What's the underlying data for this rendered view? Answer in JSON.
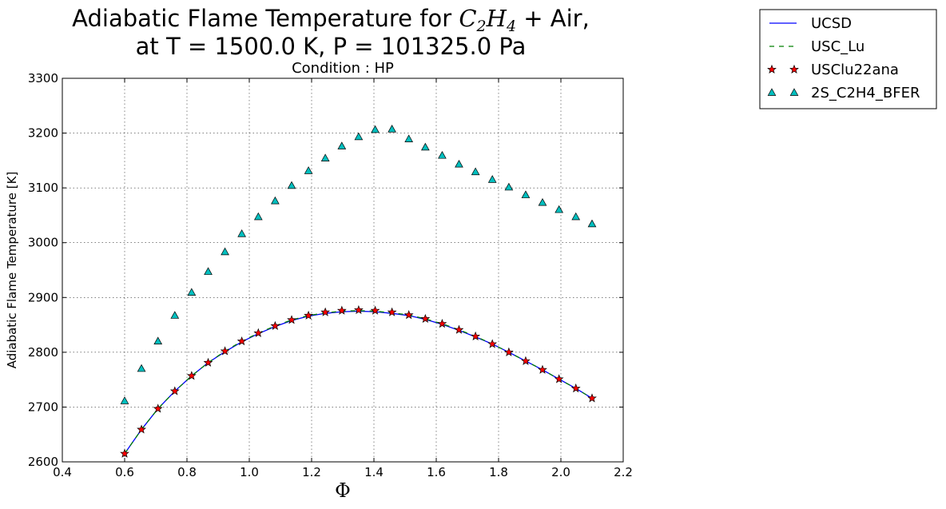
{
  "chart_data": {
    "type": "line",
    "title_line1_prefix": "Adiabatic Flame Temperature for ",
    "title_species": "C",
    "title_sub1": "2",
    "title_species2": "H",
    "title_sub2": "4",
    "title_line1_suffix": " + Air,",
    "title_line2": "at T = 1500.0 K, P = 101325.0 Pa",
    "subtitle": "Condition : HP",
    "xlabel": "Φ",
    "ylabel": "Adiabatic Flame Temperature [K]",
    "xlim": [
      0.4,
      2.2
    ],
    "ylim": [
      2600,
      3300
    ],
    "xticks": [
      "0.4",
      "0.6",
      "0.8",
      "1.0",
      "1.2",
      "1.4",
      "1.6",
      "1.8",
      "2.0",
      "2.2"
    ],
    "yticks": [
      "2600",
      "2700",
      "2800",
      "2900",
      "3000",
      "3100",
      "3200",
      "3300"
    ],
    "grid": true,
    "legend_position": "outside-top-right",
    "x": [
      0.6,
      0.654,
      0.707,
      0.761,
      0.815,
      0.868,
      0.922,
      0.976,
      1.029,
      1.083,
      1.136,
      1.19,
      1.244,
      1.297,
      1.351,
      1.404,
      1.458,
      1.512,
      1.565,
      1.619,
      1.673,
      1.726,
      1.78,
      1.833,
      1.887,
      1.941,
      1.994,
      2.048,
      2.1
    ],
    "series": [
      {
        "name": "UCSD",
        "style": "line",
        "color": "#0000ff",
        "values": [
          2615,
          2659,
          2697,
          2729,
          2757,
          2781,
          2801,
          2819,
          2834,
          2847,
          2858,
          2866,
          2871,
          2874,
          2875,
          2874,
          2871,
          2867,
          2860,
          2851,
          2840,
          2828,
          2815,
          2800,
          2784,
          2768,
          2751,
          2734,
          2716
        ]
      },
      {
        "name": "USC_Lu",
        "style": "dashed",
        "color": "#008000",
        "values": [
          2615,
          2659,
          2697,
          2729,
          2757,
          2781,
          2802,
          2820,
          2835,
          2848,
          2859,
          2867,
          2872,
          2875,
          2876,
          2875,
          2872,
          2868,
          2861,
          2852,
          2841,
          2829,
          2815,
          2800,
          2784,
          2768,
          2751,
          2734,
          2716
        ]
      },
      {
        "name": "USClu22ana",
        "style": "star",
        "color": "#ff0000",
        "values": [
          2615,
          2659,
          2697,
          2729,
          2757,
          2781,
          2802,
          2820,
          2835,
          2848,
          2859,
          2867,
          2873,
          2876,
          2877,
          2876,
          2873,
          2868,
          2861,
          2852,
          2841,
          2829,
          2815,
          2800,
          2784,
          2768,
          2751,
          2734,
          2716
        ]
      },
      {
        "name": "2S_C2H4_BFER",
        "style": "triangle",
        "color": "#00bfbf",
        "values": [
          2711,
          2770,
          2820,
          2867,
          2909,
          2947,
          2983,
          3016,
          3047,
          3076,
          3104,
          3131,
          3154,
          3176,
          3193,
          3206,
          3207,
          3189,
          3174,
          3159,
          3143,
          3129,
          3115,
          3101,
          3087,
          3073,
          3060,
          3047,
          3034
        ]
      }
    ]
  }
}
